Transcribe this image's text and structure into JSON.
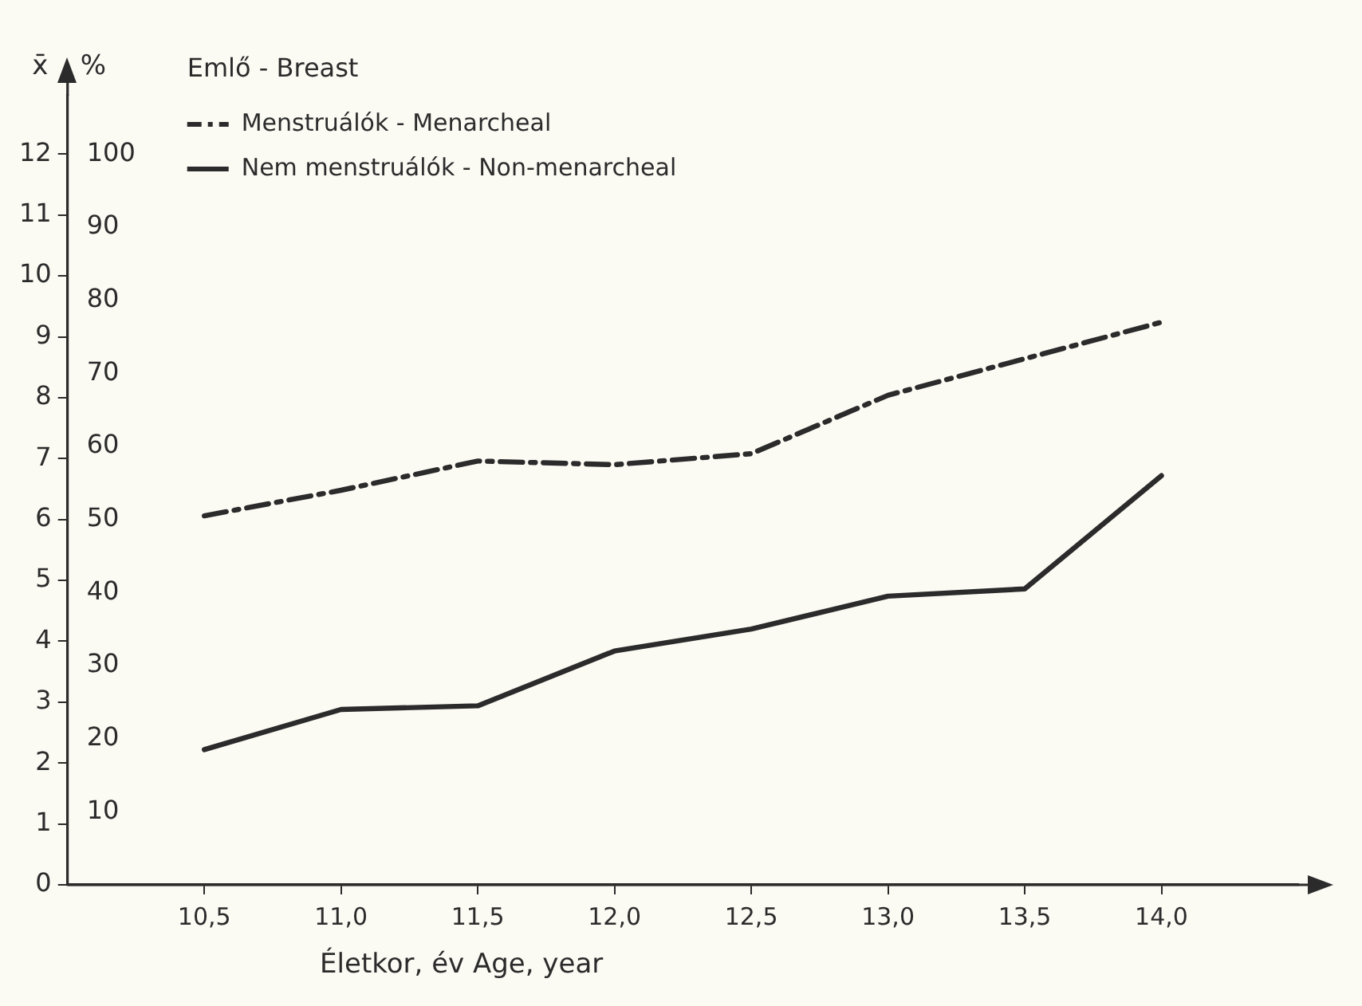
{
  "chart_data": {
    "type": "line",
    "legend_title": "Emlő - Breast",
    "xlabel": "Életkor, év Age, year",
    "ylabel": "%",
    "y2label": "x̄",
    "x": [
      10.5,
      11.0,
      11.5,
      12.0,
      12.5,
      13.0,
      13.5,
      14.0
    ],
    "series": [
      {
        "name": "Menstruálók - Menarcheal",
        "color": "#2b2b2b",
        "line_style": "dashed",
        "values": [
          50.5,
          54,
          58,
          57.5,
          59,
          67,
          72,
          77
        ]
      },
      {
        "name": "Nem menstruálók - Non-menarcheal",
        "color": "#2b2b2b",
        "line_style": "solid",
        "values": [
          18.5,
          24,
          24.5,
          32,
          35,
          39.5,
          40.5,
          56
        ]
      }
    ],
    "xlim": [
      10,
      14.5
    ],
    "xticks": [
      {
        "value": 10.5,
        "label": "10,5"
      },
      {
        "value": 11.0,
        "label": "11,0"
      },
      {
        "value": 11.5,
        "label": "11,5"
      },
      {
        "value": 12.0,
        "label": "12,0"
      },
      {
        "value": 12.5,
        "label": "12,5"
      },
      {
        "value": 13.0,
        "label": "13,0"
      },
      {
        "value": 13.5,
        "label": "13,5"
      },
      {
        "value": 14.0,
        "label": "14,0"
      }
    ],
    "ylim": [
      0,
      108
    ],
    "yticks": [
      10,
      20,
      30,
      40,
      50,
      60,
      70,
      80,
      90,
      100
    ],
    "y2lim": [
      0,
      12.96
    ],
    "y2ticks": [
      0,
      1,
      2,
      3,
      4,
      5,
      6,
      7,
      8,
      9,
      10,
      11,
      12
    ],
    "grid": false,
    "legend": "top left",
    "marker": "none"
  }
}
